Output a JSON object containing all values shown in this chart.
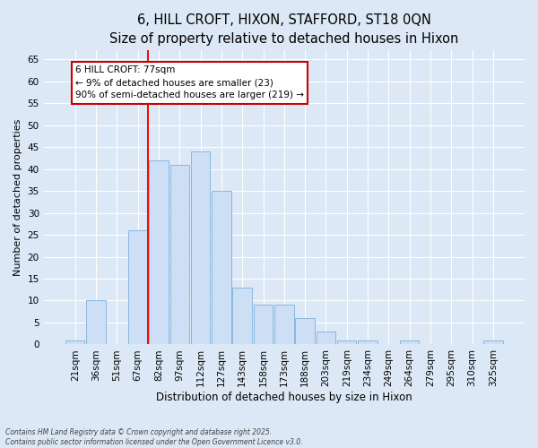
{
  "title": "6, HILL CROFT, HIXON, STAFFORD, ST18 0QN",
  "subtitle": "Size of property relative to detached houses in Hixon",
  "xlabel": "Distribution of detached houses by size in Hixon",
  "ylabel": "Number of detached properties",
  "categories": [
    "21sqm",
    "36sqm",
    "51sqm",
    "67sqm",
    "82sqm",
    "97sqm",
    "112sqm",
    "127sqm",
    "143sqm",
    "158sqm",
    "173sqm",
    "188sqm",
    "203sqm",
    "219sqm",
    "234sqm",
    "249sqm",
    "264sqm",
    "279sqm",
    "295sqm",
    "310sqm",
    "325sqm"
  ],
  "values": [
    1,
    10,
    0,
    26,
    42,
    41,
    44,
    35,
    13,
    9,
    9,
    6,
    3,
    1,
    1,
    0,
    1,
    0,
    0,
    0,
    1
  ],
  "bar_color": "#ccdff5",
  "bar_edge_color": "#89b8df",
  "red_line_index": 4,
  "ylim": [
    0,
    67
  ],
  "yticks": [
    0,
    5,
    10,
    15,
    20,
    25,
    30,
    35,
    40,
    45,
    50,
    55,
    60,
    65
  ],
  "annotation_line1": "6 HILL CROFT: 77sqm",
  "annotation_line2": "← 9% of detached houses are smaller (23)",
  "annotation_line3": "90% of semi-detached houses are larger (219) →",
  "annotation_box_facecolor": "#ffffff",
  "annotation_box_edgecolor": "#cc0000",
  "footer_text": "Contains HM Land Registry data © Crown copyright and database right 2025.\nContains public sector information licensed under the Open Government Licence v3.0.",
  "background_color": "#dce8f5",
  "grid_color": "#ffffff",
  "title_fontsize": 10.5,
  "subtitle_fontsize": 9.5,
  "xlabel_fontsize": 8.5,
  "ylabel_fontsize": 8,
  "tick_fontsize": 7.5,
  "annot_fontsize": 7.5,
  "footer_fontsize": 5.5
}
